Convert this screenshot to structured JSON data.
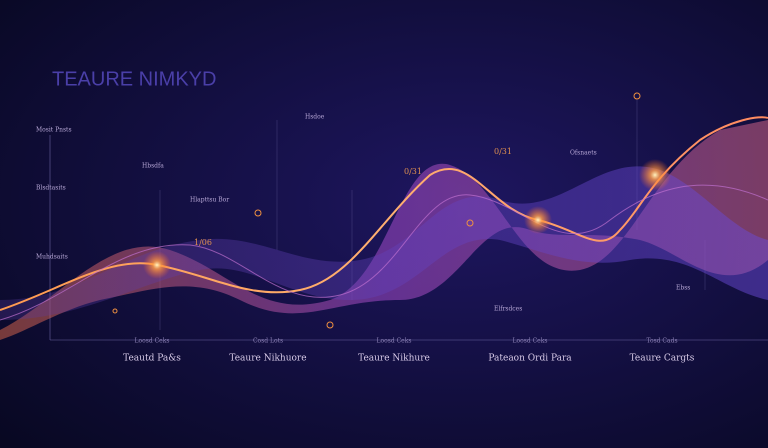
{
  "title": "TEAURE NIMKYD",
  "axis_labels": [
    "Mosit Pnsts",
    "Blsdtasits",
    "Muhdsaits"
  ],
  "point_labels": [
    "Hbsdfa",
    "Hlapttsu Bor",
    "1/06",
    "0/31",
    "0/31",
    "Ofsnaets",
    "Elfrsdces",
    "Ebss",
    "Hsdoe"
  ],
  "x_labels": [
    {
      "sub": "Loosd Ceks",
      "label": "Teautd Pa&s"
    },
    {
      "sub": "Cosd Lots",
      "label": "Teaure Nikhuore"
    },
    {
      "sub": "Loosd Ceks",
      "label": "Teaure Nikhure"
    },
    {
      "sub": "Loosd Ceks",
      "label": "Pateaon Ordi Para"
    },
    {
      "sub": "Tosd Cads",
      "label": "Teaure Cargts"
    }
  ]
}
